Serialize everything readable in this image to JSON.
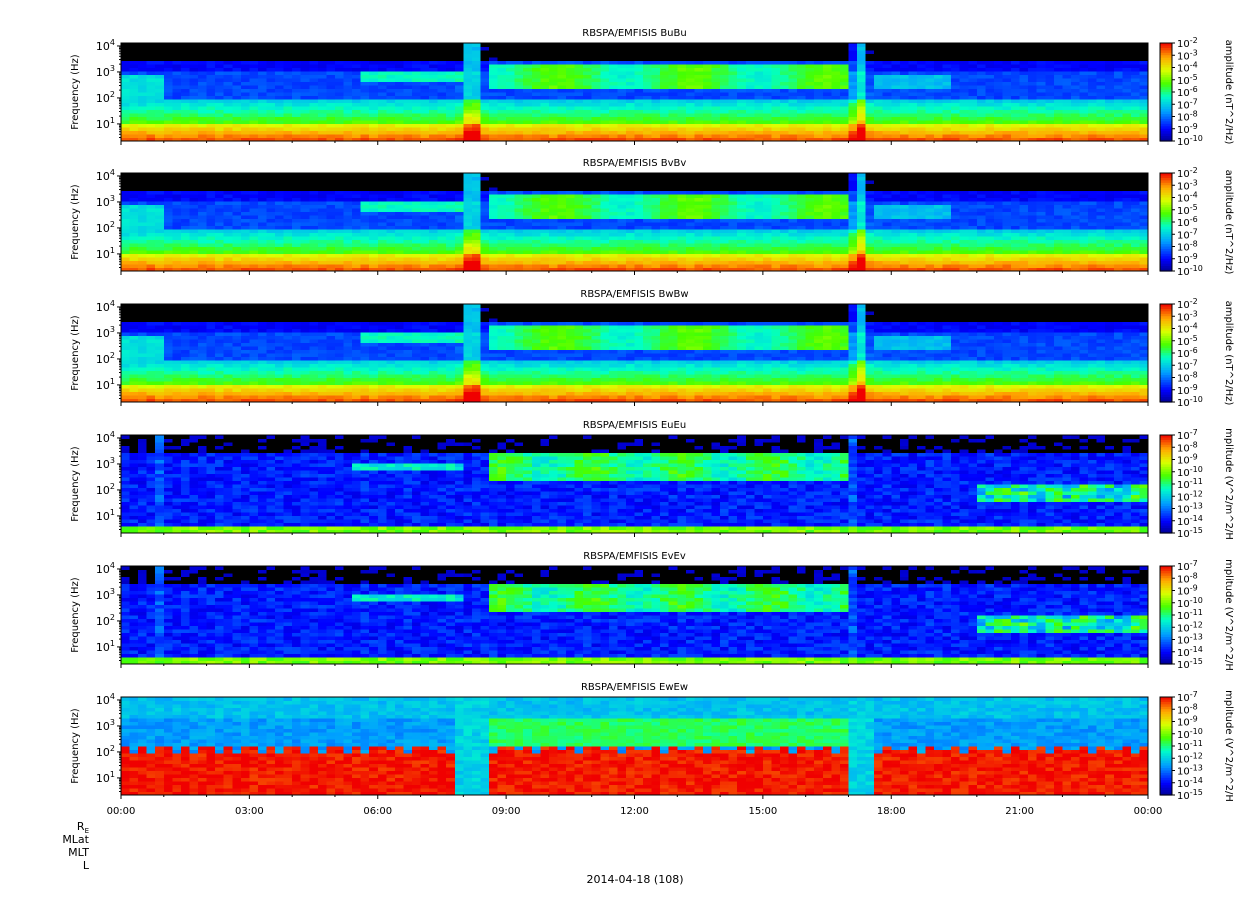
{
  "chart_data": [
    {
      "type": "heatmap",
      "title": "RBSPA/EMFISIS  BuBu",
      "ylabel": "Frequency (Hz)",
      "colorbar_label": "amplitude (nT^2/Hz)",
      "y_scale": "log",
      "y_ticks": [
        "10^1",
        "10^2",
        "10^3",
        "10^4"
      ],
      "colorbar_ticks": [
        "10^-2",
        "10^-3",
        "10^-4",
        "10^-5",
        "10^-6",
        "10^-7",
        "10^-8",
        "10^-9",
        "10^-10"
      ],
      "colorbar_range": [
        1e-10,
        0.01
      ],
      "x_ticks": [
        "00:00",
        "03:00",
        "06:00",
        "09:00",
        "12:00",
        "15:00",
        "18:00",
        "21:00",
        "00:00"
      ],
      "kind": "B"
    },
    {
      "type": "heatmap",
      "title": "RBSPA/EMFISIS  BvBv",
      "ylabel": "Frequency (Hz)",
      "colorbar_label": "amplitude (nT^2/Hz)",
      "y_scale": "log",
      "y_ticks": [
        "10^1",
        "10^2",
        "10^3",
        "10^4"
      ],
      "colorbar_ticks": [
        "10^-2",
        "10^-3",
        "10^-4",
        "10^-5",
        "10^-6",
        "10^-7",
        "10^-8",
        "10^-9",
        "10^-10"
      ],
      "colorbar_range": [
        1e-10,
        0.01
      ],
      "x_ticks": [
        "00:00",
        "03:00",
        "06:00",
        "09:00",
        "12:00",
        "15:00",
        "18:00",
        "21:00",
        "00:00"
      ],
      "kind": "B"
    },
    {
      "type": "heatmap",
      "title": "RBSPA/EMFISIS  BwBw",
      "ylabel": "Frequency (Hz)",
      "colorbar_label": "amplitude (nT^2/Hz)",
      "y_scale": "log",
      "y_ticks": [
        "10^1",
        "10^2",
        "10^3",
        "10^4"
      ],
      "colorbar_ticks": [
        "10^-2",
        "10^-3",
        "10^-4",
        "10^-5",
        "10^-6",
        "10^-7",
        "10^-8",
        "10^-9",
        "10^-10"
      ],
      "colorbar_range": [
        1e-10,
        0.01
      ],
      "x_ticks": [
        "00:00",
        "03:00",
        "06:00",
        "09:00",
        "12:00",
        "15:00",
        "18:00",
        "21:00",
        "00:00"
      ],
      "kind": "B"
    },
    {
      "type": "heatmap",
      "title": "RBSPA/EMFISIS  EuEu",
      "ylabel": "Frequency (Hz)",
      "colorbar_label": "mplitude (V^2/m^2/H",
      "y_scale": "log",
      "y_ticks": [
        "10^1",
        "10^2",
        "10^3",
        "10^4"
      ],
      "colorbar_ticks": [
        "10^-7",
        "10^-8",
        "10^-9",
        "10^-10",
        "10^-11",
        "10^-12",
        "10^-13",
        "10^-14",
        "10^-15"
      ],
      "colorbar_range": [
        1e-15,
        1e-07
      ],
      "x_ticks": [
        "00:00",
        "03:00",
        "06:00",
        "09:00",
        "12:00",
        "15:00",
        "18:00",
        "21:00",
        "00:00"
      ],
      "kind": "E"
    },
    {
      "type": "heatmap",
      "title": "RBSPA/EMFISIS  EvEv",
      "ylabel": "Frequency (Hz)",
      "colorbar_label": "mplitude (V^2/m^2/H",
      "y_scale": "log",
      "y_ticks": [
        "10^1",
        "10^2",
        "10^3",
        "10^4"
      ],
      "colorbar_ticks": [
        "10^-7",
        "10^-8",
        "10^-9",
        "10^-10",
        "10^-11",
        "10^-12",
        "10^-13",
        "10^-14",
        "10^-15"
      ],
      "colorbar_range": [
        1e-15,
        1e-07
      ],
      "x_ticks": [
        "00:00",
        "03:00",
        "06:00",
        "09:00",
        "12:00",
        "15:00",
        "18:00",
        "21:00",
        "00:00"
      ],
      "kind": "E"
    },
    {
      "type": "heatmap",
      "title": "RBSPA/EMFISIS  EwEw",
      "ylabel": "Frequency (Hz)",
      "colorbar_label": "mplitude (V^2/m^2/H",
      "y_scale": "log",
      "y_ticks": [
        "10^1",
        "10^2",
        "10^3",
        "10^4"
      ],
      "colorbar_ticks": [
        "10^-7",
        "10^-8",
        "10^-9",
        "10^-10",
        "10^-11",
        "10^-12",
        "10^-13",
        "10^-14",
        "10^-15"
      ],
      "colorbar_range": [
        1e-15,
        1e-07
      ],
      "x_ticks": [
        "00:00",
        "03:00",
        "06:00",
        "09:00",
        "12:00",
        "15:00",
        "18:00",
        "21:00",
        "00:00"
      ],
      "kind": "Ew"
    }
  ],
  "ephemeris_labels": [
    "R",
    "MLat",
    "MLT",
    "L"
  ],
  "ephemeris_subscript": "E",
  "date_label": "2014-04-18 (108)"
}
